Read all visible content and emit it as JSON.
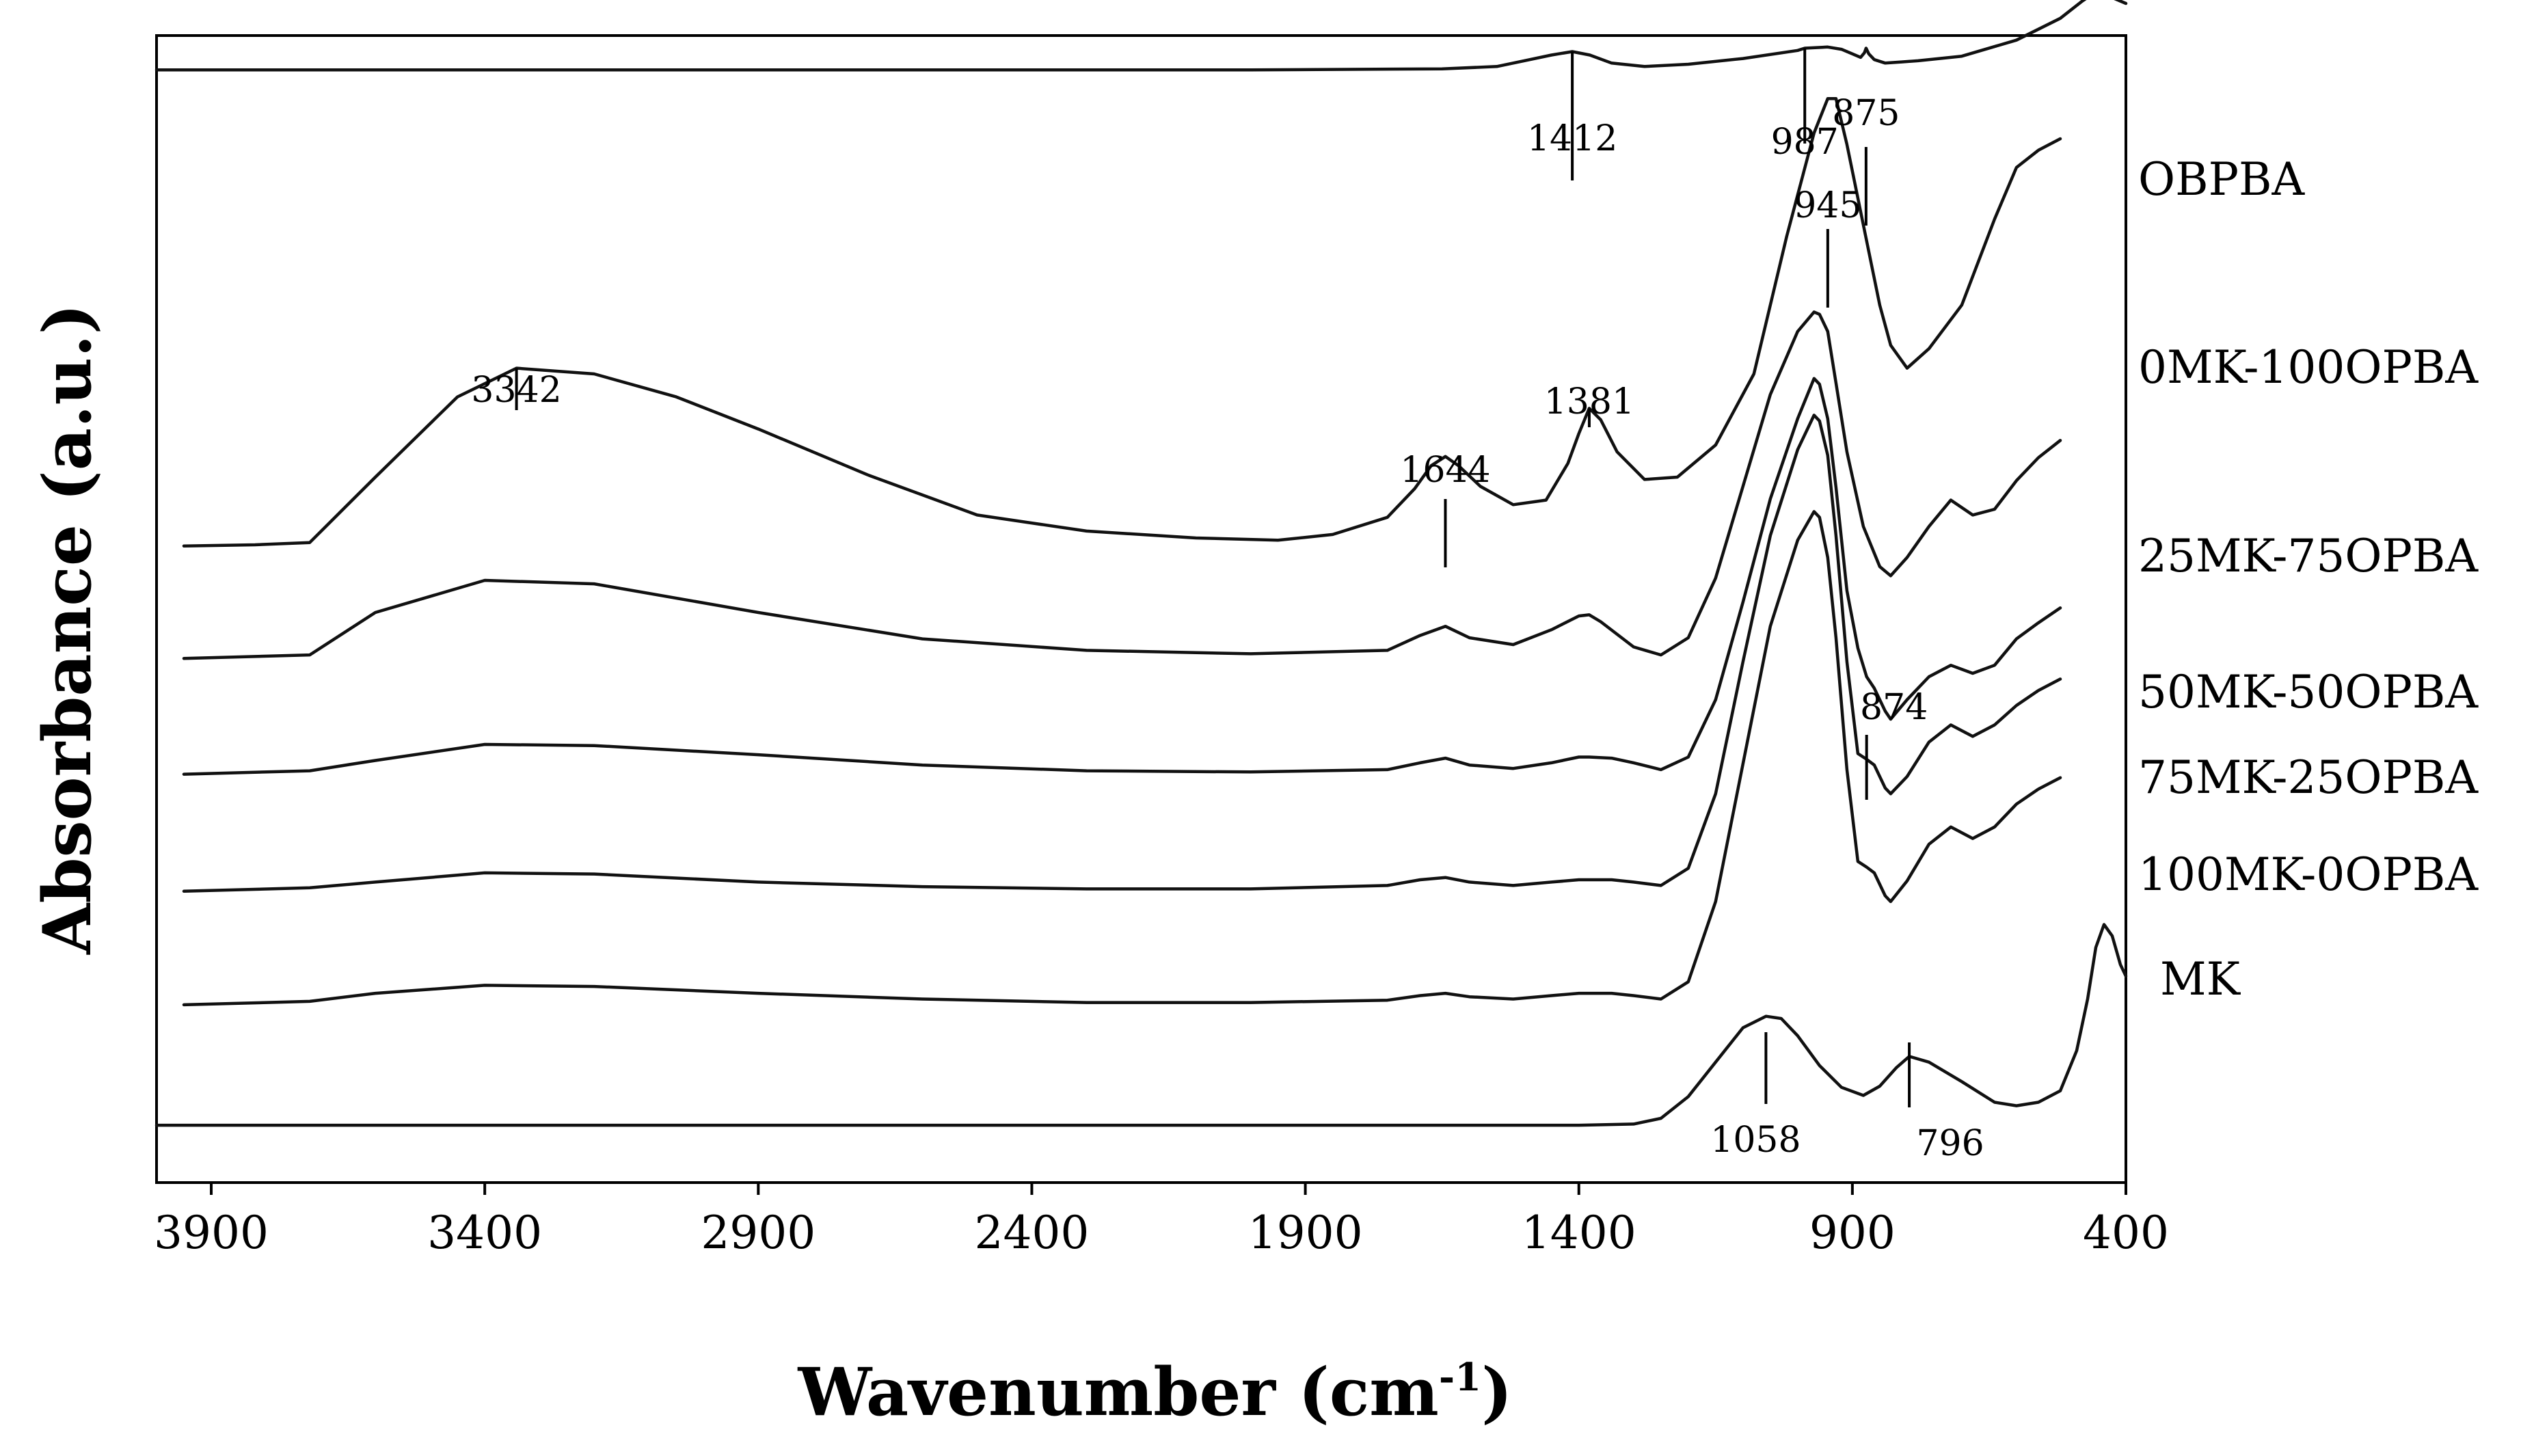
{
  "chart_data": {
    "type": "line",
    "title": "",
    "xlabel": "Wavenumber (cm",
    "xlabel_superscript": "-1",
    "xlabel_close": ")",
    "ylabel": "Absorbance (a.u.)",
    "x_axis_reversed": true,
    "xlim": [
      4000,
      400
    ],
    "x_ticks": [
      3900,
      3400,
      2900,
      2400,
      1900,
      1400,
      900,
      400
    ],
    "x_tick_labels": [
      "3900",
      "3400",
      "2900",
      "2400",
      "1900",
      "1400",
      "900",
      "400"
    ],
    "y_ticks_shown": false,
    "y_units": "arbitrary, stacked with vertical offsets",
    "ylim": [
      0,
      10
    ],
    "series": [
      {
        "name": "OBPBA",
        "offset": 9.7,
        "x": [
          4000,
          3000,
          2000,
          1650,
          1550,
          1500,
          1450,
          1412,
          1380,
          1340,
          1280,
          1200,
          1100,
          1000,
          987,
          945,
          920,
          900,
          885,
          878,
          875,
          870,
          860,
          840,
          810,
          780,
          700,
          600,
          520,
          480,
          455,
          430,
          400
        ],
        "y": [
          0,
          0,
          0,
          0.01,
          0.03,
          0.08,
          0.13,
          0.16,
          0.13,
          0.06,
          0.03,
          0.05,
          0.1,
          0.17,
          0.19,
          0.2,
          0.18,
          0.14,
          0.11,
          0.15,
          0.19,
          0.14,
          0.09,
          0.06,
          0.07,
          0.08,
          0.12,
          0.26,
          0.45,
          0.6,
          0.68,
          0.64,
          0.58
        ]
      },
      {
        "name": "0MK-100OPBA",
        "offset": 5.55,
        "x": [
          3950,
          3820,
          3720,
          3600,
          3450,
          3342,
          3200,
          3050,
          2900,
          2700,
          2500,
          2300,
          2100,
          1950,
          1850,
          1750,
          1700,
          1670,
          1644,
          1620,
          1580,
          1520,
          1460,
          1420,
          1400,
          1381,
          1360,
          1330,
          1280,
          1220,
          1150,
          1080,
          1020,
          970,
          945,
          930,
          910,
          880,
          850,
          830,
          800,
          760,
          700,
          640,
          600,
          560,
          520
        ],
        "y": [
          0,
          0.01,
          0.03,
          0.6,
          1.3,
          1.55,
          1.5,
          1.3,
          1.02,
          0.62,
          0.27,
          0.13,
          0.07,
          0.05,
          0.1,
          0.25,
          0.5,
          0.7,
          0.78,
          0.7,
          0.52,
          0.36,
          0.4,
          0.72,
          0.98,
          1.2,
          1.1,
          0.82,
          0.58,
          0.6,
          0.88,
          1.5,
          2.7,
          3.6,
          3.9,
          3.9,
          3.5,
          2.8,
          2.1,
          1.75,
          1.55,
          1.72,
          2.1,
          2.85,
          3.3,
          3.45,
          3.55
        ]
      },
      {
        "name": "25MK-75OPBA",
        "offset": 4.57,
        "x": [
          3950,
          3720,
          3600,
          3400,
          3200,
          2900,
          2600,
          2300,
          2000,
          1750,
          1690,
          1644,
          1600,
          1520,
          1450,
          1400,
          1381,
          1360,
          1300,
          1250,
          1200,
          1150,
          1100,
          1050,
          1000,
          970,
          960,
          945,
          930,
          910,
          880,
          850,
          830,
          800,
          760,
          720,
          680,
          640,
          600,
          560,
          520
        ],
        "y": [
          0,
          0.03,
          0.4,
          0.68,
          0.65,
          0.4,
          0.17,
          0.07,
          0.04,
          0.07,
          0.2,
          0.28,
          0.18,
          0.12,
          0.25,
          0.37,
          0.38,
          0.32,
          0.1,
          0.03,
          0.18,
          0.7,
          1.5,
          2.3,
          2.85,
          3.02,
          3.0,
          2.85,
          2.4,
          1.8,
          1.15,
          0.8,
          0.72,
          0.88,
          1.15,
          1.38,
          1.25,
          1.3,
          1.55,
          1.75,
          1.9
        ]
      },
      {
        "name": "50MK-50OPBA",
        "offset": 3.56,
        "x": [
          3950,
          3720,
          3600,
          3400,
          3200,
          2900,
          2600,
          2300,
          2000,
          1750,
          1690,
          1644,
          1600,
          1520,
          1450,
          1400,
          1381,
          1340,
          1300,
          1250,
          1200,
          1150,
          1100,
          1050,
          1000,
          970,
          960,
          945,
          930,
          910,
          890,
          874,
          860,
          840,
          830,
          800,
          760,
          720,
          680,
          640,
          600,
          560,
          520
        ],
        "y": [
          0,
          0.03,
          0.12,
          0.26,
          0.25,
          0.17,
          0.08,
          0.03,
          0.02,
          0.04,
          0.1,
          0.14,
          0.08,
          0.05,
          0.1,
          0.15,
          0.15,
          0.14,
          0.1,
          0.04,
          0.15,
          0.65,
          1.5,
          2.4,
          3.1,
          3.45,
          3.4,
          3.1,
          2.5,
          1.6,
          1.1,
          0.85,
          0.75,
          0.55,
          0.48,
          0.65,
          0.85,
          0.95,
          0.88,
          0.95,
          1.18,
          1.32,
          1.45
        ]
      },
      {
        "name": "75MK-25OPBA",
        "offset": 2.54,
        "x": [
          3950,
          3720,
          3600,
          3400,
          3200,
          2900,
          2600,
          2300,
          2000,
          1750,
          1690,
          1644,
          1600,
          1520,
          1450,
          1400,
          1381,
          1340,
          1300,
          1250,
          1200,
          1150,
          1100,
          1050,
          1000,
          970,
          960,
          945,
          930,
          910,
          890,
          874,
          860,
          840,
          830,
          800,
          760,
          720,
          680,
          640,
          600,
          560,
          520
        ],
        "y": [
          0,
          0.03,
          0.08,
          0.16,
          0.15,
          0.08,
          0.04,
          0.02,
          0.02,
          0.05,
          0.1,
          0.12,
          0.08,
          0.05,
          0.08,
          0.1,
          0.1,
          0.1,
          0.08,
          0.05,
          0.2,
          0.85,
          2.0,
          3.1,
          3.85,
          4.15,
          4.1,
          3.8,
          3.1,
          2.0,
          1.2,
          1.15,
          1.1,
          0.9,
          0.85,
          1.0,
          1.3,
          1.45,
          1.35,
          1.45,
          1.62,
          1.75,
          1.85
        ]
      },
      {
        "name": "100MK-0OPBA",
        "offset": 1.55,
        "x": [
          3950,
          3720,
          3600,
          3400,
          3200,
          2900,
          2600,
          2300,
          2000,
          1750,
          1690,
          1644,
          1600,
          1520,
          1450,
          1400,
          1381,
          1340,
          1300,
          1250,
          1200,
          1150,
          1100,
          1050,
          1000,
          970,
          960,
          945,
          930,
          910,
          890,
          874,
          860,
          840,
          830,
          800,
          760,
          720,
          680,
          640,
          600,
          560,
          520
        ],
        "y": [
          0,
          0.03,
          0.1,
          0.17,
          0.16,
          0.1,
          0.05,
          0.02,
          0.02,
          0.04,
          0.08,
          0.1,
          0.07,
          0.05,
          0.08,
          0.1,
          0.1,
          0.1,
          0.08,
          0.05,
          0.2,
          0.9,
          2.1,
          3.3,
          4.05,
          4.3,
          4.25,
          3.9,
          3.2,
          2.05,
          1.25,
          1.2,
          1.15,
          0.95,
          0.9,
          1.08,
          1.4,
          1.55,
          1.45,
          1.55,
          1.75,
          1.88,
          1.98
        ]
      },
      {
        "name": "MK",
        "offset": 0.5,
        "x": [
          4000,
          2000,
          1400,
          1300,
          1250,
          1200,
          1150,
          1100,
          1058,
          1030,
          1000,
          960,
          920,
          880,
          850,
          820,
          796,
          760,
          700,
          640,
          600,
          560,
          520,
          490,
          470,
          455,
          440,
          425,
          410,
          400
        ],
        "y": [
          0,
          0,
          0,
          0.01,
          0.06,
          0.25,
          0.55,
          0.85,
          0.95,
          0.93,
          0.78,
          0.52,
          0.33,
          0.26,
          0.34,
          0.5,
          0.6,
          0.55,
          0.38,
          0.2,
          0.17,
          0.2,
          0.3,
          0.65,
          1.1,
          1.55,
          1.75,
          1.65,
          1.4,
          1.3
        ]
      }
    ],
    "series_labels": [
      {
        "text": "OBPBA",
        "series": "OBPBA"
      },
      {
        "text": "0MK-100OPBA",
        "series": "0MK-100OPBA"
      },
      {
        "text": "25MK-75OPBA",
        "series": "25MK-75OPBA"
      },
      {
        "text": "50MK-50OPBA",
        "series": "50MK-50OPBA"
      },
      {
        "text": "75MK-25OPBA",
        "series": "75MK-25OPBA"
      },
      {
        "text": "100MK-0OPBA",
        "series": "100MK-0OPBA"
      },
      {
        "text": "MK",
        "series": "MK"
      }
    ],
    "annotations": [
      {
        "label": "1412",
        "x": 1412,
        "series": "OBPBA"
      },
      {
        "label": "987",
        "x": 987,
        "series": "OBPBA"
      },
      {
        "label": "875",
        "x": 875,
        "series": "OBPBA"
      },
      {
        "label": "945",
        "x": 945,
        "series": "0MK-100OPBA"
      },
      {
        "label": "3342",
        "x": 3342,
        "series": "0MK-100OPBA"
      },
      {
        "label": "1644",
        "x": 1644,
        "series": "0MK-100OPBA"
      },
      {
        "label": "1381",
        "x": 1381,
        "series": "0MK-100OPBA"
      },
      {
        "label": "874",
        "x": 874,
        "series": "50MK-50OPBA"
      },
      {
        "label": "1058",
        "x": 1058,
        "series": "MK"
      },
      {
        "label": "796",
        "x": 796,
        "series": "MK"
      }
    ]
  }
}
